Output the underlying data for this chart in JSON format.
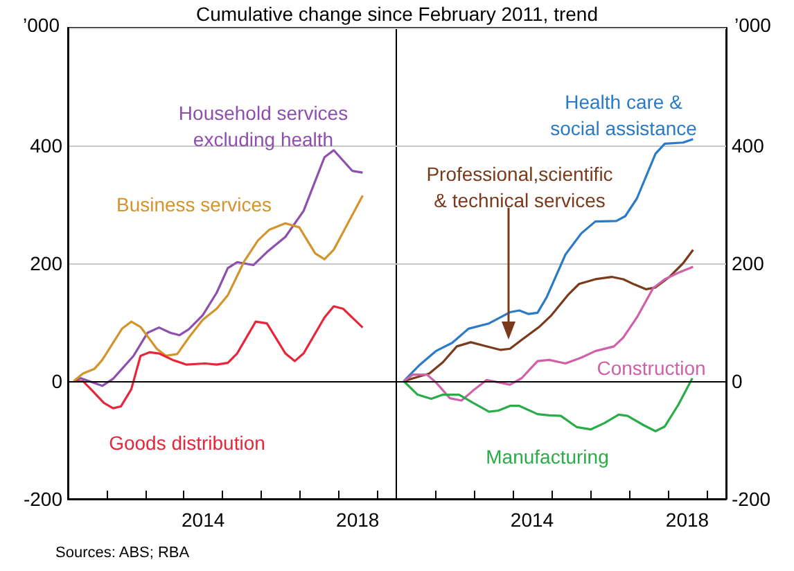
{
  "chart_data": [
    {
      "type": "line",
      "title": "Cumulative change since February 2011, trend",
      "ylabel": "’000",
      "annotations": [
        "Sources: ABS; RBA"
      ],
      "grid": "y",
      "xlim": [
        2011,
        2019.5
      ],
      "xticks": [
        {
          "value": 2012,
          "label": null
        },
        {
          "value": 2013,
          "label": null
        },
        {
          "value": 2014,
          "label": null
        },
        {
          "value": 2014.5,
          "label": "2014"
        },
        {
          "value": 2015,
          "label": null
        },
        {
          "value": 2016,
          "label": null
        },
        {
          "value": 2017,
          "label": null
        },
        {
          "value": 2018,
          "label": null
        },
        {
          "value": 2018.5,
          "label": "2018"
        },
        {
          "value": 2019,
          "label": null
        }
      ],
      "ylim": [
        -200,
        600
      ],
      "yticks": [
        -200,
        0,
        200,
        400
      ],
      "ref_lines": [
        {
          "axis": "y",
          "value": 0,
          "color": "#000000"
        }
      ],
      "series": [
        {
          "name": "Household services\nexcluding health",
          "color": "#8e4fae",
          "x": [
            2011.15,
            2011.33,
            2011.89,
            2012.17,
            2012.7,
            2013.06,
            2013.36,
            2013.65,
            2013.89,
            2014.13,
            2014.49,
            2014.85,
            2015.14,
            2015.38,
            2015.8,
            2016.15,
            2016.63,
            2017.1,
            2017.64,
            2017.88,
            2018.36,
            2018.63
          ],
          "values": [
            0,
            5,
            -8,
            4,
            43,
            82,
            91,
            82,
            78,
            88,
            112,
            150,
            192,
            202,
            197,
            219,
            245,
            289,
            380,
            392,
            357,
            354
          ]
        },
        {
          "name": "Business services",
          "color": "#d4942c",
          "x": [
            2011.15,
            2011.39,
            2011.69,
            2011.89,
            2012.4,
            2012.64,
            2012.88,
            2013.3,
            2013.54,
            2013.83,
            2014.13,
            2014.49,
            2014.85,
            2015.14,
            2015.56,
            2015.92,
            2016.21,
            2016.63,
            2016.99,
            2017.4,
            2017.64,
            2017.88,
            2018.63
          ],
          "values": [
            0,
            13,
            21,
            36,
            89,
            101,
            92,
            55,
            43,
            46,
            74,
            104,
            123,
            146,
            203,
            239,
            257,
            268,
            261,
            217,
            207,
            223,
            315
          ]
        },
        {
          "name": "Goods distribution",
          "color": "#e8263a",
          "x": [
            2011.21,
            2011.39,
            2011.63,
            2011.93,
            2012.17,
            2012.37,
            2012.64,
            2012.88,
            2013.12,
            2013.36,
            2013.71,
            2014.07,
            2014.55,
            2014.85,
            2015.14,
            2015.38,
            2015.86,
            2016.15,
            2016.63,
            2016.87,
            2017.1,
            2017.64,
            2017.88,
            2018.12,
            2018.63
          ],
          "values": [
            0,
            0,
            -16,
            -37,
            -46,
            -43,
            -14,
            43,
            49,
            47,
            36,
            28,
            30,
            28,
            31,
            47,
            101,
            98,
            47,
            34,
            47,
            108,
            127,
            123,
            91
          ]
        }
      ]
    },
    {
      "type": "line",
      "y2label": "’000",
      "grid": "y",
      "xlim": [
        2011,
        2019.5
      ],
      "xticks": [
        {
          "value": 2012,
          "label": null
        },
        {
          "value": 2013,
          "label": null
        },
        {
          "value": 2014,
          "label": null
        },
        {
          "value": 2014.5,
          "label": "2014"
        },
        {
          "value": 2015,
          "label": null
        },
        {
          "value": 2016,
          "label": null
        },
        {
          "value": 2017,
          "label": null
        },
        {
          "value": 2018,
          "label": null
        },
        {
          "value": 2018.5,
          "label": "2018"
        },
        {
          "value": 2019,
          "label": null
        }
      ],
      "y2lim": [
        -200,
        600
      ],
      "y2ticks": [
        -200,
        0,
        200,
        400
      ],
      "ref_lines": [
        {
          "axis": "y2",
          "value": 0,
          "color": "#000000"
        }
      ],
      "series": [
        {
          "name": "Health care &\nsocial assistance",
          "axis": "y2",
          "color": "#2a7ac8",
          "x": [
            2011.19,
            2011.61,
            2012.02,
            2012.44,
            2012.86,
            2013.39,
            2013.93,
            2014.17,
            2014.4,
            2014.64,
            2014.88,
            2015.36,
            2015.77,
            2016.13,
            2016.67,
            2016.9,
            2017.2,
            2017.68,
            2017.92,
            2018.39,
            2018.65
          ],
          "values": [
            0,
            28,
            51,
            65,
            89,
            98,
            117,
            120,
            114,
            116,
            143,
            215,
            251,
            271,
            272,
            280,
            310,
            386,
            403,
            405,
            411
          ]
        },
        {
          "name": "Professional,scientific\n& technical services",
          "axis": "y2",
          "color": "#7a3a1c",
          "x": [
            2011.19,
            2011.85,
            2012.2,
            2012.56,
            2012.92,
            2013.27,
            2013.69,
            2013.93,
            2014.23,
            2014.7,
            2015.0,
            2015.42,
            2015.71,
            2016.13,
            2016.55,
            2016.85,
            2017.14,
            2017.44,
            2017.68,
            2018.04,
            2018.39,
            2018.65
          ],
          "values": [
            0,
            13,
            32,
            59,
            66,
            60,
            53,
            55,
            70,
            93,
            112,
            146,
            165,
            173,
            177,
            173,
            164,
            156,
            159,
            177,
            200,
            223
          ]
        },
        {
          "name": "Construction",
          "axis": "y2",
          "color": "#d060a8",
          "x": [
            2011.19,
            2011.43,
            2011.79,
            2012.02,
            2012.38,
            2012.68,
            2012.98,
            2013.33,
            2013.63,
            2013.93,
            2014.23,
            2014.64,
            2014.94,
            2015.36,
            2015.77,
            2016.13,
            2016.61,
            2016.85,
            2017.2,
            2017.62,
            2017.92,
            2018.27,
            2018.65
          ],
          "values": [
            0,
            11,
            11,
            -2,
            -29,
            -33,
            -16,
            2,
            -2,
            -6,
            5,
            34,
            36,
            30,
            40,
            51,
            59,
            74,
            108,
            158,
            173,
            184,
            194
          ]
        },
        {
          "name": "Manufacturing",
          "axis": "y2",
          "color": "#2aac48",
          "x": [
            2011.19,
            2011.55,
            2011.9,
            2012.2,
            2012.62,
            2012.98,
            2013.39,
            2013.63,
            2013.93,
            2014.17,
            2014.64,
            2014.94,
            2015.24,
            2015.65,
            2016.01,
            2016.37,
            2016.73,
            2016.96,
            2017.38,
            2017.68,
            2017.92,
            2018.27,
            2018.63
          ],
          "values": [
            0,
            -23,
            -30,
            -23,
            -23,
            -37,
            -52,
            -50,
            -42,
            -42,
            -56,
            -58,
            -59,
            -78,
            -82,
            -71,
            -57,
            -59,
            -75,
            -85,
            -77,
            -40,
            5
          ]
        }
      ]
    }
  ]
}
